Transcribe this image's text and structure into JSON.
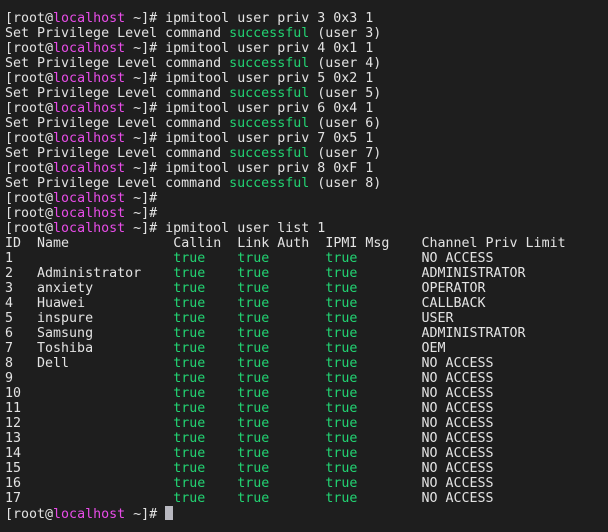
{
  "prompt": {
    "open": "[root@",
    "host": "localhost",
    "close": " ~]# "
  },
  "colors": {
    "background": "#1e1e1e",
    "text": "#e3e3e3",
    "host": "#e84ce8",
    "success": "#22d372"
  },
  "history": [
    {
      "cmd": "ipmitool user priv 3 0x3 1",
      "out": [
        "Set Privilege Level command ",
        "successful",
        " (user 3)"
      ]
    },
    {
      "cmd": "ipmitool user priv 4 0x1 1",
      "out": [
        "Set Privilege Level command ",
        "successful",
        " (user 4)"
      ]
    },
    {
      "cmd": "ipmitool user priv 5 0x2 1",
      "out": [
        "Set Privilege Level command ",
        "successful",
        " (user 5)"
      ]
    },
    {
      "cmd": "ipmitool user priv 6 0x4 1",
      "out": [
        "Set Privilege Level command ",
        "successful",
        " (user 6)"
      ]
    },
    {
      "cmd": "ipmitool user priv 7 0x5 1",
      "out": [
        "Set Privilege Level command ",
        "successful",
        " (user 7)"
      ]
    },
    {
      "cmd": "ipmitool user priv 8 0xF 1",
      "out": [
        "Set Privilege Level command ",
        "successful",
        " (user 8)"
      ]
    },
    {
      "cmd": "",
      "out": null
    },
    {
      "cmd": "",
      "out": null
    },
    {
      "cmd": "ipmitool user list 1",
      "out": null
    }
  ],
  "table": {
    "headers": [
      "ID",
      "Name",
      "Callin",
      "Link Auth",
      "IPMI Msg",
      "Channel Priv Limit"
    ],
    "rows": [
      [
        "1",
        "",
        "true",
        "true",
        "true",
        "NO ACCESS"
      ],
      [
        "2",
        "Administrator",
        "true",
        "true",
        "true",
        "ADMINISTRATOR"
      ],
      [
        "3",
        "anxiety",
        "true",
        "true",
        "true",
        "OPERATOR"
      ],
      [
        "4",
        "Huawei",
        "true",
        "true",
        "true",
        "CALLBACK"
      ],
      [
        "5",
        "inspure",
        "true",
        "true",
        "true",
        "USER"
      ],
      [
        "6",
        "Samsung",
        "true",
        "true",
        "true",
        "ADMINISTRATOR"
      ],
      [
        "7",
        "Toshiba",
        "true",
        "true",
        "true",
        "OEM"
      ],
      [
        "8",
        "Dell",
        "true",
        "true",
        "true",
        "NO ACCESS"
      ],
      [
        "9",
        "",
        "true",
        "true",
        "true",
        "NO ACCESS"
      ],
      [
        "10",
        "",
        "true",
        "true",
        "true",
        "NO ACCESS"
      ],
      [
        "11",
        "",
        "true",
        "true",
        "true",
        "NO ACCESS"
      ],
      [
        "12",
        "",
        "true",
        "true",
        "true",
        "NO ACCESS"
      ],
      [
        "13",
        "",
        "true",
        "true",
        "true",
        "NO ACCESS"
      ],
      [
        "14",
        "",
        "true",
        "true",
        "true",
        "NO ACCESS"
      ],
      [
        "15",
        "",
        "true",
        "true",
        "true",
        "NO ACCESS"
      ],
      [
        "16",
        "",
        "true",
        "true",
        "true",
        "NO ACCESS"
      ],
      [
        "17",
        "",
        "true",
        "true",
        "true",
        "NO ACCESS"
      ]
    ]
  }
}
